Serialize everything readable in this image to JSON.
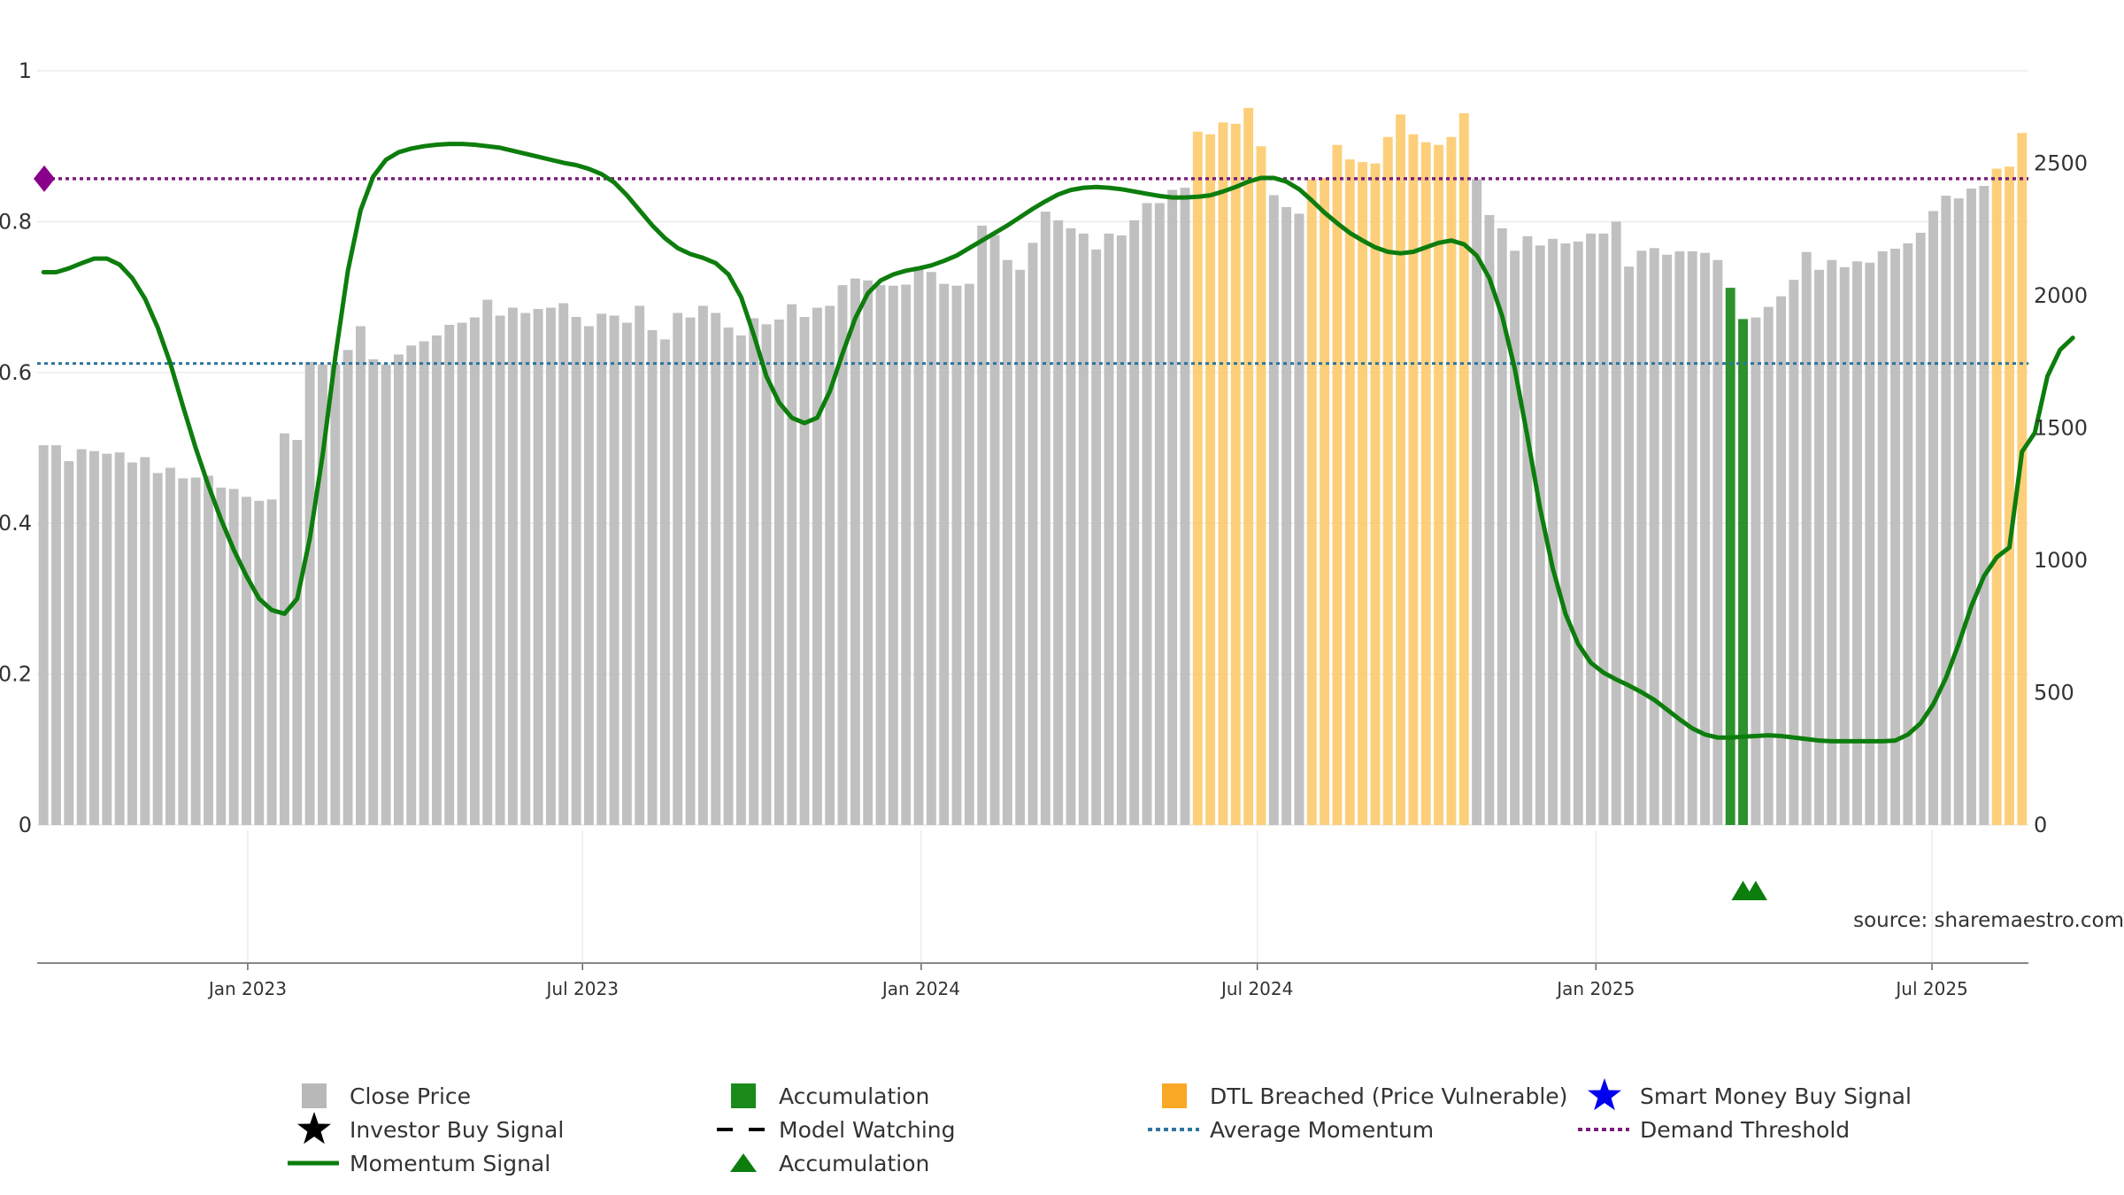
{
  "chart_data": {
    "type": "bar",
    "title": "",
    "xlabel": "",
    "ylabel": "",
    "left_axis": {
      "ylim": [
        0,
        1
      ],
      "ticks": [
        "0",
        "0.2",
        "0.4",
        "0.6",
        "0.8",
        "1"
      ]
    },
    "right_axis": {
      "ylim": [
        0,
        2850
      ],
      "ticks": [
        "0",
        "500",
        "1000",
        "1500",
        "2000",
        "2500"
      ]
    },
    "x_ticks": [
      "Jan 2023",
      "Jul 2023",
      "Jan 2024",
      "Jul 2024",
      "Jan 2025",
      "Jul 2025"
    ],
    "average_momentum": 0.612,
    "demand_threshold": 0.857,
    "source": "source: sharemaestro.com",
    "legend": [
      {
        "key": "close",
        "label": "Close Price",
        "symbol": "square",
        "color": "#b8b8b8"
      },
      {
        "key": "accum_bar",
        "label": "Accumulation",
        "symbol": "square",
        "color": "#1a8a1a"
      },
      {
        "key": "dtl",
        "label": "DTL Breached (Price Vulnerable)",
        "symbol": "square",
        "color": "#f9a825"
      },
      {
        "key": "smart",
        "label": "Smart Money Buy Signal",
        "symbol": "star",
        "color": "#0000ee"
      },
      {
        "key": "investor",
        "label": "Investor Buy Signal",
        "symbol": "star",
        "color": "#000000"
      },
      {
        "key": "watch",
        "label": "Model Watching",
        "symbol": "dash",
        "color": "#000000"
      },
      {
        "key": "avg",
        "label": "Average Momentum",
        "symbol": "dot",
        "color": "#2e75a0"
      },
      {
        "key": "demand",
        "label": "Demand Threshold",
        "symbol": "dot",
        "color": "#7b1f7b"
      },
      {
        "key": "momentum",
        "label": "Momentum Signal",
        "symbol": "line",
        "color": "#0d7d0d"
      },
      {
        "key": "accum_tri",
        "label": "Accumulation",
        "symbol": "triangle",
        "color": "#0d7d0d"
      }
    ],
    "bars": [
      {
        "v": 1435,
        "c": "g"
      },
      {
        "v": 1435,
        "c": "g"
      },
      {
        "v": 1375,
        "c": "g"
      },
      {
        "v": 1420,
        "c": "g"
      },
      {
        "v": 1413,
        "c": "g"
      },
      {
        "v": 1403,
        "c": "g"
      },
      {
        "v": 1408,
        "c": "g"
      },
      {
        "v": 1370,
        "c": "g"
      },
      {
        "v": 1390,
        "c": "g"
      },
      {
        "v": 1330,
        "c": "g"
      },
      {
        "v": 1350,
        "c": "g"
      },
      {
        "v": 1310,
        "c": "g"
      },
      {
        "v": 1313,
        "c": "g"
      },
      {
        "v": 1320,
        "c": "g"
      },
      {
        "v": 1275,
        "c": "g"
      },
      {
        "v": 1270,
        "c": "g"
      },
      {
        "v": 1240,
        "c": "g"
      },
      {
        "v": 1225,
        "c": "g"
      },
      {
        "v": 1230,
        "c": "g"
      },
      {
        "v": 1480,
        "c": "g"
      },
      {
        "v": 1455,
        "c": "g"
      },
      {
        "v": 1750,
        "c": "g"
      },
      {
        "v": 1740,
        "c": "g"
      },
      {
        "v": 1740,
        "c": "g"
      },
      {
        "v": 1795,
        "c": "g"
      },
      {
        "v": 1885,
        "c": "g"
      },
      {
        "v": 1760,
        "c": "g"
      },
      {
        "v": 1740,
        "c": "g"
      },
      {
        "v": 1778,
        "c": "g"
      },
      {
        "v": 1812,
        "c": "g"
      },
      {
        "v": 1828,
        "c": "g"
      },
      {
        "v": 1850,
        "c": "g"
      },
      {
        "v": 1890,
        "c": "g"
      },
      {
        "v": 1898,
        "c": "g"
      },
      {
        "v": 1918,
        "c": "g"
      },
      {
        "v": 1985,
        "c": "g"
      },
      {
        "v": 1925,
        "c": "g"
      },
      {
        "v": 1955,
        "c": "g"
      },
      {
        "v": 1935,
        "c": "g"
      },
      {
        "v": 1950,
        "c": "g"
      },
      {
        "v": 1955,
        "c": "g"
      },
      {
        "v": 1972,
        "c": "g"
      },
      {
        "v": 1920,
        "c": "g"
      },
      {
        "v": 1885,
        "c": "g"
      },
      {
        "v": 1932,
        "c": "g"
      },
      {
        "v": 1925,
        "c": "g"
      },
      {
        "v": 1898,
        "c": "g"
      },
      {
        "v": 1962,
        "c": "g"
      },
      {
        "v": 1870,
        "c": "g"
      },
      {
        "v": 1835,
        "c": "g"
      },
      {
        "v": 1935,
        "c": "g"
      },
      {
        "v": 1918,
        "c": "g"
      },
      {
        "v": 1962,
        "c": "g"
      },
      {
        "v": 1935,
        "c": "g"
      },
      {
        "v": 1880,
        "c": "g"
      },
      {
        "v": 1850,
        "c": "g"
      },
      {
        "v": 1915,
        "c": "g"
      },
      {
        "v": 1892,
        "c": "g"
      },
      {
        "v": 1910,
        "c": "g"
      },
      {
        "v": 1968,
        "c": "g"
      },
      {
        "v": 1920,
        "c": "g"
      },
      {
        "v": 1955,
        "c": "g"
      },
      {
        "v": 1962,
        "c": "g"
      },
      {
        "v": 2040,
        "c": "g"
      },
      {
        "v": 2065,
        "c": "g"
      },
      {
        "v": 2058,
        "c": "g"
      },
      {
        "v": 2040,
        "c": "g"
      },
      {
        "v": 2038,
        "c": "g"
      },
      {
        "v": 2042,
        "c": "g"
      },
      {
        "v": 2110,
        "c": "g"
      },
      {
        "v": 2090,
        "c": "g"
      },
      {
        "v": 2045,
        "c": "g"
      },
      {
        "v": 2038,
        "c": "g"
      },
      {
        "v": 2045,
        "c": "g"
      },
      {
        "v": 2265,
        "c": "g"
      },
      {
        "v": 2230,
        "c": "g"
      },
      {
        "v": 2135,
        "c": "g"
      },
      {
        "v": 2098,
        "c": "g"
      },
      {
        "v": 2200,
        "c": "g"
      },
      {
        "v": 2318,
        "c": "g"
      },
      {
        "v": 2285,
        "c": "g"
      },
      {
        "v": 2255,
        "c": "g"
      },
      {
        "v": 2235,
        "c": "g"
      },
      {
        "v": 2175,
        "c": "g"
      },
      {
        "v": 2235,
        "c": "g"
      },
      {
        "v": 2228,
        "c": "g"
      },
      {
        "v": 2285,
        "c": "g"
      },
      {
        "v": 2350,
        "c": "g"
      },
      {
        "v": 2350,
        "c": "g"
      },
      {
        "v": 2400,
        "c": "g"
      },
      {
        "v": 2408,
        "c": "g"
      },
      {
        "v": 2620,
        "c": "o"
      },
      {
        "v": 2610,
        "c": "o"
      },
      {
        "v": 2655,
        "c": "o"
      },
      {
        "v": 2650,
        "c": "o"
      },
      {
        "v": 2710,
        "c": "o"
      },
      {
        "v": 2565,
        "c": "o"
      },
      {
        "v": 2380,
        "c": "g"
      },
      {
        "v": 2335,
        "c": "g"
      },
      {
        "v": 2310,
        "c": "g"
      },
      {
        "v": 2440,
        "c": "o"
      },
      {
        "v": 2445,
        "c": "o"
      },
      {
        "v": 2570,
        "c": "o"
      },
      {
        "v": 2515,
        "c": "o"
      },
      {
        "v": 2505,
        "c": "o"
      },
      {
        "v": 2500,
        "c": "o"
      },
      {
        "v": 2600,
        "c": "o"
      },
      {
        "v": 2685,
        "c": "o"
      },
      {
        "v": 2610,
        "c": "o"
      },
      {
        "v": 2580,
        "c": "o"
      },
      {
        "v": 2570,
        "c": "o"
      },
      {
        "v": 2600,
        "c": "o"
      },
      {
        "v": 2690,
        "c": "o"
      },
      {
        "v": 2440,
        "c": "g"
      },
      {
        "v": 2305,
        "c": "g"
      },
      {
        "v": 2255,
        "c": "g"
      },
      {
        "v": 2170,
        "c": "g"
      },
      {
        "v": 2225,
        "c": "g"
      },
      {
        "v": 2190,
        "c": "g"
      },
      {
        "v": 2215,
        "c": "g"
      },
      {
        "v": 2198,
        "c": "g"
      },
      {
        "v": 2205,
        "c": "g"
      },
      {
        "v": 2235,
        "c": "g"
      },
      {
        "v": 2235,
        "c": "g"
      },
      {
        "v": 2280,
        "c": "g"
      },
      {
        "v": 2110,
        "c": "g"
      },
      {
        "v": 2170,
        "c": "g"
      },
      {
        "v": 2180,
        "c": "g"
      },
      {
        "v": 2155,
        "c": "g"
      },
      {
        "v": 2168,
        "c": "g"
      },
      {
        "v": 2168,
        "c": "g"
      },
      {
        "v": 2162,
        "c": "g"
      },
      {
        "v": 2135,
        "c": "g"
      },
      {
        "v": 2030,
        "c": "a"
      },
      {
        "v": 1912,
        "c": "a"
      },
      {
        "v": 1918,
        "c": "g"
      },
      {
        "v": 1958,
        "c": "g"
      },
      {
        "v": 1998,
        "c": "g"
      },
      {
        "v": 2060,
        "c": "g"
      },
      {
        "v": 2165,
        "c": "g"
      },
      {
        "v": 2098,
        "c": "g"
      },
      {
        "v": 2135,
        "c": "g"
      },
      {
        "v": 2108,
        "c": "g"
      },
      {
        "v": 2130,
        "c": "g"
      },
      {
        "v": 2125,
        "c": "g"
      },
      {
        "v": 2168,
        "c": "g"
      },
      {
        "v": 2178,
        "c": "g"
      },
      {
        "v": 2198,
        "c": "g"
      },
      {
        "v": 2238,
        "c": "g"
      },
      {
        "v": 2320,
        "c": "g"
      },
      {
        "v": 2378,
        "c": "g"
      },
      {
        "v": 2368,
        "c": "g"
      },
      {
        "v": 2405,
        "c": "g"
      },
      {
        "v": 2415,
        "c": "g"
      },
      {
        "v": 2480,
        "c": "o"
      },
      {
        "v": 2488,
        "c": "o"
      },
      {
        "v": 2615,
        "c": "o"
      }
    ],
    "momentum": [
      [
        0.0,
        0.733
      ],
      [
        1.0,
        0.733
      ],
      [
        2.0,
        0.738
      ],
      [
        3.0,
        0.745
      ],
      [
        4.0,
        0.751
      ],
      [
        5.0,
        0.751
      ],
      [
        6.0,
        0.743
      ],
      [
        7.0,
        0.725
      ],
      [
        8.0,
        0.698
      ],
      [
        9.0,
        0.66
      ],
      [
        10.0,
        0.612
      ],
      [
        11.0,
        0.555
      ],
      [
        12.0,
        0.5
      ],
      [
        13.0,
        0.45
      ],
      [
        14.0,
        0.405
      ],
      [
        15.0,
        0.365
      ],
      [
        16.0,
        0.33
      ],
      [
        17.0,
        0.3
      ],
      [
        18.0,
        0.285
      ],
      [
        19.0,
        0.28
      ],
      [
        20.0,
        0.3
      ],
      [
        21.0,
        0.38
      ],
      [
        22.0,
        0.49
      ],
      [
        23.0,
        0.62
      ],
      [
        24.0,
        0.735
      ],
      [
        25.0,
        0.815
      ],
      [
        26.0,
        0.86
      ],
      [
        27.0,
        0.882
      ],
      [
        28.0,
        0.892
      ],
      [
        29.0,
        0.897
      ],
      [
        30.0,
        0.9
      ],
      [
        31.0,
        0.902
      ],
      [
        32.0,
        0.903
      ],
      [
        33.0,
        0.903
      ],
      [
        34.0,
        0.902
      ],
      [
        35.0,
        0.9
      ],
      [
        36.0,
        0.898
      ],
      [
        37.0,
        0.894
      ],
      [
        38.0,
        0.89
      ],
      [
        39.0,
        0.886
      ],
      [
        40.0,
        0.882
      ],
      [
        41.0,
        0.878
      ],
      [
        42.0,
        0.875
      ],
      [
        43.0,
        0.87
      ],
      [
        44.0,
        0.863
      ],
      [
        45.0,
        0.852
      ],
      [
        46.0,
        0.835
      ],
      [
        47.0,
        0.815
      ],
      [
        48.0,
        0.795
      ],
      [
        49.0,
        0.778
      ],
      [
        50.0,
        0.765
      ],
      [
        51.0,
        0.757
      ],
      [
        52.0,
        0.752
      ],
      [
        53.0,
        0.745
      ],
      [
        54.0,
        0.73
      ],
      [
        55.0,
        0.7
      ],
      [
        56.0,
        0.65
      ],
      [
        57.0,
        0.595
      ],
      [
        58.0,
        0.56
      ],
      [
        59.0,
        0.54
      ],
      [
        60.0,
        0.533
      ],
      [
        61.0,
        0.54
      ],
      [
        62.0,
        0.575
      ],
      [
        63.0,
        0.625
      ],
      [
        64.0,
        0.672
      ],
      [
        65.0,
        0.705
      ],
      [
        66.0,
        0.722
      ],
      [
        67.0,
        0.73
      ],
      [
        68.0,
        0.735
      ],
      [
        69.0,
        0.738
      ],
      [
        70.0,
        0.742
      ],
      [
        71.0,
        0.748
      ],
      [
        72.0,
        0.755
      ],
      [
        73.0,
        0.765
      ],
      [
        74.0,
        0.775
      ],
      [
        75.0,
        0.785
      ],
      [
        76.0,
        0.795
      ],
      [
        77.0,
        0.806
      ],
      [
        78.0,
        0.817
      ],
      [
        79.0,
        0.827
      ],
      [
        80.0,
        0.836
      ],
      [
        81.0,
        0.842
      ],
      [
        82.0,
        0.845
      ],
      [
        83.0,
        0.846
      ],
      [
        84.0,
        0.845
      ],
      [
        85.0,
        0.843
      ],
      [
        86.0,
        0.84
      ],
      [
        87.0,
        0.837
      ],
      [
        88.0,
        0.834
      ],
      [
        89.0,
        0.832
      ],
      [
        90.0,
        0.832
      ],
      [
        91.0,
        0.833
      ],
      [
        92.0,
        0.835
      ],
      [
        93.0,
        0.84
      ],
      [
        94.0,
        0.846
      ],
      [
        95.0,
        0.853
      ],
      [
        96.0,
        0.858
      ],
      [
        97.0,
        0.858
      ],
      [
        98.0,
        0.853
      ],
      [
        99.0,
        0.843
      ],
      [
        100.0,
        0.828
      ],
      [
        101.0,
        0.812
      ],
      [
        102.0,
        0.798
      ],
      [
        103.0,
        0.785
      ],
      [
        104.0,
        0.775
      ],
      [
        105.0,
        0.766
      ],
      [
        106.0,
        0.76
      ],
      [
        107.0,
        0.758
      ],
      [
        108.0,
        0.76
      ],
      [
        109.0,
        0.766
      ],
      [
        110.0,
        0.772
      ],
      [
        111.0,
        0.775
      ],
      [
        112.0,
        0.77
      ],
      [
        113.0,
        0.755
      ],
      [
        114.0,
        0.725
      ],
      [
        115.0,
        0.675
      ],
      [
        116.0,
        0.605
      ],
      [
        117.0,
        0.515
      ],
      [
        118.0,
        0.42
      ],
      [
        119.0,
        0.34
      ],
      [
        120.0,
        0.28
      ],
      [
        121.0,
        0.24
      ],
      [
        122.0,
        0.215
      ],
      [
        123.0,
        0.202
      ],
      [
        124.0,
        0.193
      ],
      [
        125.0,
        0.185
      ],
      [
        126.0,
        0.176
      ],
      [
        127.0,
        0.166
      ],
      [
        128.0,
        0.153
      ],
      [
        129.0,
        0.14
      ],
      [
        130.0,
        0.128
      ],
      [
        131.0,
        0.12
      ],
      [
        132.0,
        0.116
      ],
      [
        133.0,
        0.116
      ],
      [
        134.0,
        0.117
      ],
      [
        135.0,
        0.118
      ],
      [
        136.0,
        0.119
      ],
      [
        137.0,
        0.118
      ],
      [
        138.0,
        0.116
      ],
      [
        139.0,
        0.114
      ],
      [
        140.0,
        0.112
      ],
      [
        141.0,
        0.111
      ],
      [
        142.0,
        0.111
      ],
      [
        143.0,
        0.111
      ],
      [
        144.0,
        0.111
      ],
      [
        145.0,
        0.111
      ],
      [
        146.0,
        0.112
      ],
      [
        147.0,
        0.12
      ],
      [
        148.0,
        0.135
      ],
      [
        149.0,
        0.16
      ],
      [
        150.0,
        0.195
      ],
      [
        151.0,
        0.24
      ],
      [
        152.0,
        0.29
      ],
      [
        153.0,
        0.33
      ],
      [
        154.0,
        0.355
      ],
      [
        155.0,
        0.368
      ],
      [
        156.0,
        0.495
      ],
      [
        157.0,
        0.52
      ],
      [
        158.0,
        0.595
      ],
      [
        159.0,
        0.63
      ],
      [
        160.0,
        0.646
      ]
    ],
    "accumulation_markers": [
      134,
      135
    ],
    "demand_marker": "diamond"
  }
}
